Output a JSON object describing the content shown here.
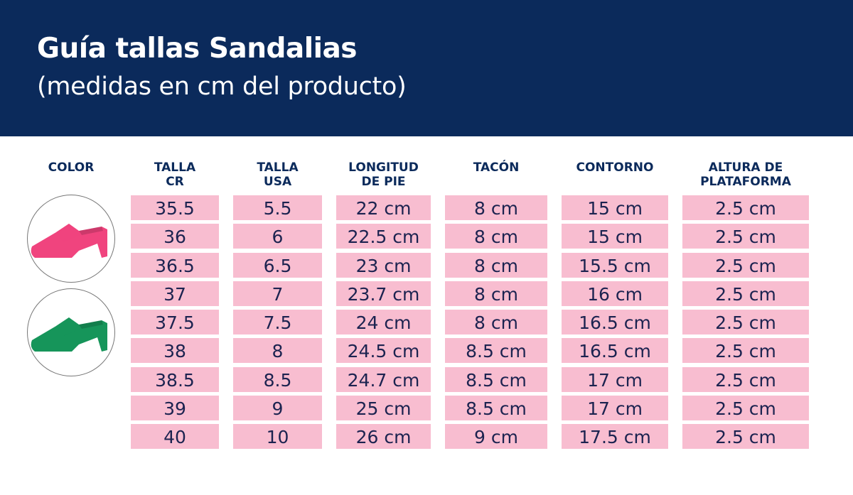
{
  "header": {
    "title": "Guía tallas Sandalias",
    "subtitle": "(medidas en cm del producto)"
  },
  "colors": {
    "header_bg": "#0b2a5b",
    "cell_bg": "#f8bdd0",
    "pink_sandal": "#f0447e",
    "green_sandal": "#16955a"
  },
  "color_column": {
    "label": "COLOR",
    "items": [
      {
        "icon": "pink-sandal-icon"
      },
      {
        "icon": "green-sandal-icon"
      }
    ]
  },
  "columns": [
    {
      "label": "TALLA\nCR",
      "values": [
        "35.5",
        "36",
        "36.5",
        "37",
        "37.5",
        "38",
        "38.5",
        "39",
        "40"
      ]
    },
    {
      "label": "TALLA\nUSA",
      "values": [
        "5.5",
        "6",
        "6.5",
        "7",
        "7.5",
        "8",
        "8.5",
        "9",
        "10"
      ]
    },
    {
      "label": "LONGITUD\nDE PIE",
      "values": [
        "22 cm",
        "22.5 cm",
        "23 cm",
        "23.7 cm",
        "24 cm",
        "24.5 cm",
        "24.7 cm",
        "25 cm",
        "26 cm"
      ]
    },
    {
      "label": "TACÓN",
      "values": [
        "8 cm",
        "8 cm",
        "8 cm",
        "8 cm",
        "8 cm",
        "8.5 cm",
        "8.5 cm",
        "8.5 cm",
        "9 cm"
      ]
    },
    {
      "label": "CONTORNO",
      "values": [
        "15 cm",
        "15 cm",
        "15.5 cm",
        "16 cm",
        "16.5 cm",
        "16.5 cm",
        "17 cm",
        "17 cm",
        "17.5 cm"
      ]
    },
    {
      "label": "ALTURA DE\nPLATAFORMA",
      "values": [
        "2.5 cm",
        "2.5 cm",
        "2.5 cm",
        "2.5 cm",
        "2.5 cm",
        "2.5 cm",
        "2.5 cm",
        "2.5 cm",
        "2.5 cm"
      ]
    }
  ]
}
